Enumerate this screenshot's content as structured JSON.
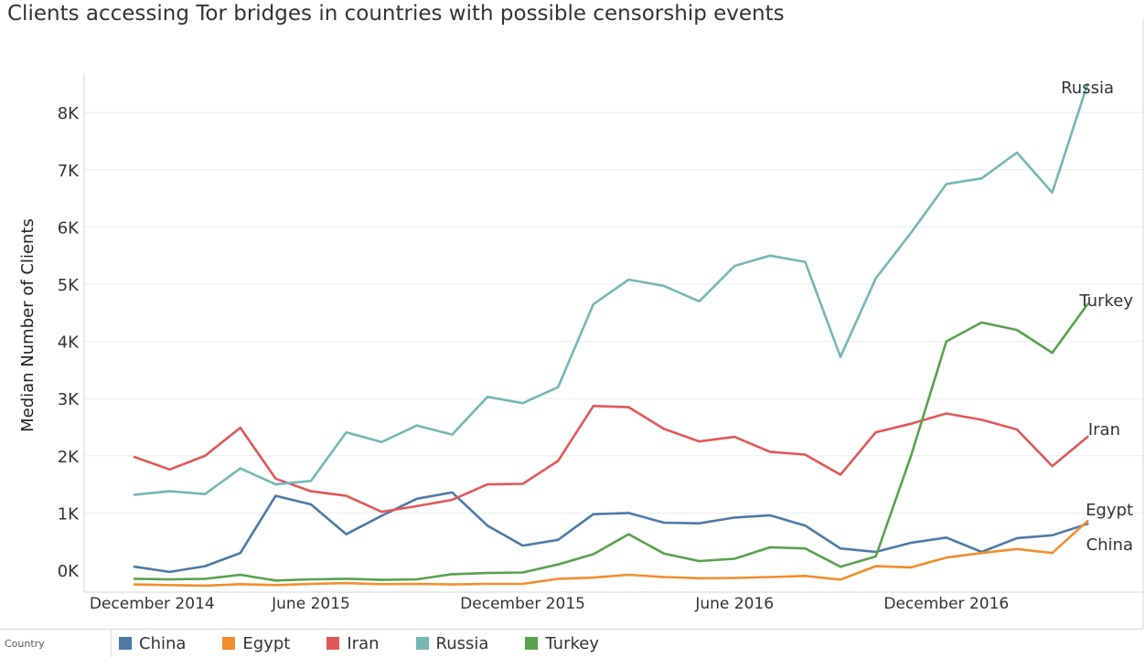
{
  "chart_data": {
    "type": "line",
    "title": "Clients accessing Tor bridges in countries with possible censorship events",
    "xlabel": "",
    "ylabel": "Median Number of Clients",
    "x_tick_labels": [
      "December 2014",
      "June 2015",
      "December 2015",
      "June 2016",
      "December 2016"
    ],
    "x_tick_index": [
      0.5,
      5,
      11,
      17,
      23
    ],
    "y_ticks": [
      0,
      1000,
      2000,
      3000,
      4000,
      5000,
      6000,
      7000,
      8000
    ],
    "y_tick_labels": [
      "0K",
      "1K",
      "2K",
      "3K",
      "4K",
      "5K",
      "6K",
      "7K",
      "8K"
    ],
    "ylim": [
      0,
      9000
    ],
    "grid": true,
    "legend": {
      "title": "Country",
      "placement": "bottom",
      "entries": [
        "China",
        "Egypt",
        "Iran",
        "Russia",
        "Turkey"
      ]
    },
    "series": [
      {
        "name": "China",
        "color": "#4e79a7",
        "end_label": "China",
        "values": [
          60,
          -30,
          70,
          300,
          1300,
          1150,
          630,
          950,
          1250,
          1360,
          780,
          430,
          530,
          980,
          1000,
          830,
          820,
          920,
          960,
          780,
          380,
          320,
          480,
          570,
          320,
          560,
          610,
          810
        ]
      },
      {
        "name": "Egypt",
        "color": "#f28e2b",
        "end_label": "Egypt",
        "values": [
          -250,
          -260,
          -270,
          -245,
          -260,
          -240,
          -225,
          -245,
          -240,
          -250,
          -240,
          -240,
          -150,
          -130,
          -80,
          -120,
          -140,
          -135,
          -120,
          -100,
          -165,
          70,
          50,
          220,
          300,
          370,
          300,
          860
        ]
      },
      {
        "name": "Iran",
        "color": "#e15759",
        "end_label": "Iran",
        "values": [
          1980,
          1760,
          2000,
          2490,
          1600,
          1380,
          1300,
          1020,
          1120,
          1230,
          1500,
          1510,
          1910,
          2870,
          2850,
          2470,
          2250,
          2330,
          2070,
          2020,
          1670,
          2410,
          2560,
          2740,
          2630,
          2460,
          1820,
          2330
        ]
      },
      {
        "name": "Russia",
        "color": "#76b7b2",
        "end_label": "Russia",
        "values": [
          1320,
          1380,
          1330,
          1780,
          1500,
          1560,
          2410,
          2240,
          2530,
          2370,
          3030,
          2920,
          3200,
          4650,
          5080,
          4970,
          4700,
          5320,
          5500,
          5390,
          3730,
          5100,
          5900,
          6750,
          6850,
          7300,
          6600,
          8500
        ]
      },
      {
        "name": "Turkey",
        "color": "#59a14f",
        "end_label": "Turkey",
        "values": [
          -150,
          -160,
          -150,
          -80,
          -180,
          -160,
          -150,
          -170,
          -160,
          -70,
          -50,
          -40,
          100,
          280,
          630,
          290,
          160,
          200,
          400,
          380,
          60,
          240,
          2000,
          4000,
          4330,
          4200,
          3800,
          4650
        ]
      }
    ]
  }
}
